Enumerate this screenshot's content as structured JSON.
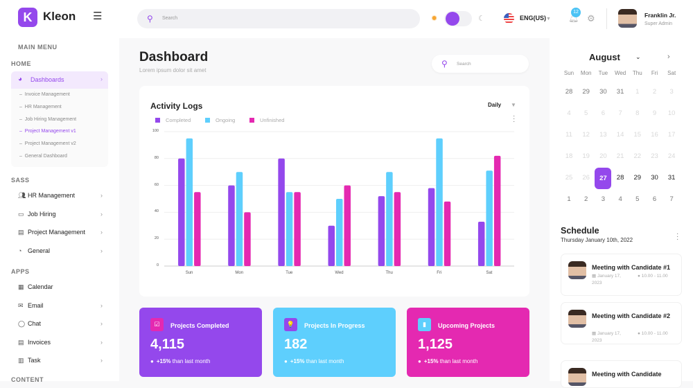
{
  "brand": {
    "logo_letter": "K",
    "name": "Kleon",
    "menu_icon": "hamburger-icon"
  },
  "sidebar": {
    "main_menu": "MAIN MENU",
    "sections": {
      "home": "HOME",
      "sass": "SASS",
      "apps": "APPS",
      "content": "CONTENT"
    },
    "dashboards": {
      "label": "Dashboards",
      "icon": "gauge-icon",
      "sub": [
        "Invoice Management",
        "HR Management",
        "Job Hiring Management",
        "Project Management v1",
        "Project Management v2",
        "General Dashboard"
      ],
      "active_sub": 3
    },
    "sass_items": [
      {
        "label": "HR Management",
        "icon": "users-icon"
      },
      {
        "label": "Job Hiring",
        "icon": "briefcase-icon"
      },
      {
        "label": "Project Management",
        "icon": "clipboard-icon"
      },
      {
        "label": "General",
        "icon": "gauge-icon"
      }
    ],
    "apps_items": [
      {
        "label": "Calendar",
        "icon": "calendar-icon",
        "chevron": false
      },
      {
        "label": "Email",
        "icon": "mail-icon",
        "chevron": true
      },
      {
        "label": "Chat",
        "icon": "chat-icon",
        "chevron": true
      },
      {
        "label": "Invoices",
        "icon": "invoice-icon",
        "chevron": true
      },
      {
        "label": "Task",
        "icon": "task-icon",
        "chevron": true
      }
    ]
  },
  "header": {
    "search_placeholder": "Search",
    "language": "ENG(US)",
    "notifications": "12",
    "user": {
      "name": "Franklin Jr.",
      "role": "Super Admin"
    },
    "theme": "light"
  },
  "page": {
    "title": "Dashboard",
    "subtitle": "Lorem ipsum dolor sit amet",
    "search_placeholder": "Search"
  },
  "chart_data": {
    "type": "bar",
    "title": "Activity Logs",
    "period": "Daily",
    "categories": [
      "Sun",
      "Mon",
      "Tue",
      "Wed",
      "Thu",
      "Fri",
      "Sat"
    ],
    "series": [
      {
        "name": "Completed",
        "color": "#9448ec",
        "values": [
          80,
          60,
          80,
          30,
          52,
          58,
          33
        ]
      },
      {
        "name": "Ongoing",
        "color": "#5ecffd",
        "values": [
          95,
          70,
          55,
          50,
          70,
          95,
          71
        ]
      },
      {
        "name": "Unfinished",
        "color": "#e429b1",
        "values": [
          55,
          40,
          55,
          60,
          55,
          48,
          82
        ]
      }
    ],
    "ylim": [
      0,
      100
    ],
    "yticks": [
      "0",
      "20",
      "40",
      "60",
      "80",
      "100"
    ],
    "grid": true,
    "legend": "top-left"
  },
  "stats": [
    {
      "label": "Projects Completed",
      "value": "4,115",
      "trend": "+15%",
      "trend_text": "than last month",
      "bg": "#9448ec",
      "icon_bg": "#e429b1",
      "icon": "check-square-icon",
      "glyph": "☑"
    },
    {
      "label": "Projects In Progress",
      "value": "182",
      "trend": "+15%",
      "trend_text": "than last month",
      "bg": "#5ecffd",
      "icon_bg": "#9448ec",
      "icon": "lightbulb-icon",
      "glyph": "💡"
    },
    {
      "label": "Upcoming Projects",
      "value": "1,125",
      "trend": "+15%",
      "trend_text": "than last month",
      "bg": "#e429b1",
      "icon_bg": "#5ecffd",
      "icon": "bookmark-icon",
      "glyph": "▮"
    }
  ],
  "calendar": {
    "month": "August",
    "dow": [
      "Sun",
      "Mon",
      "Tue",
      "Wed",
      "Thu",
      "Fri",
      "Sat"
    ],
    "weeks": [
      [
        "28",
        "29",
        "30",
        "31",
        "1",
        "2",
        "3"
      ],
      [
        "4",
        "5",
        "6",
        "7",
        "8",
        "9",
        "10"
      ],
      [
        "11",
        "12",
        "13",
        "14",
        "15",
        "16",
        "17"
      ],
      [
        "18",
        "19",
        "20",
        "21",
        "22",
        "23",
        "24"
      ],
      [
        "25",
        "26",
        "27",
        "28",
        "29",
        "30",
        "31"
      ],
      [
        "1",
        "2",
        "3",
        "4",
        "5",
        "6",
        "7"
      ]
    ],
    "selected": "27"
  },
  "schedule": {
    "title": "Schedule",
    "date": "Thursday January 10th, 2022",
    "items": [
      {
        "title": "Meeting with Candidate #1",
        "date": "January 17, 2023",
        "time": "10.00 - 11.00"
      },
      {
        "title": "Meeting with Candidate #2",
        "date": "January 17, 2023",
        "time": "10.00 - 11.00"
      },
      {
        "title": "Meeting with Candidate"
      }
    ]
  }
}
